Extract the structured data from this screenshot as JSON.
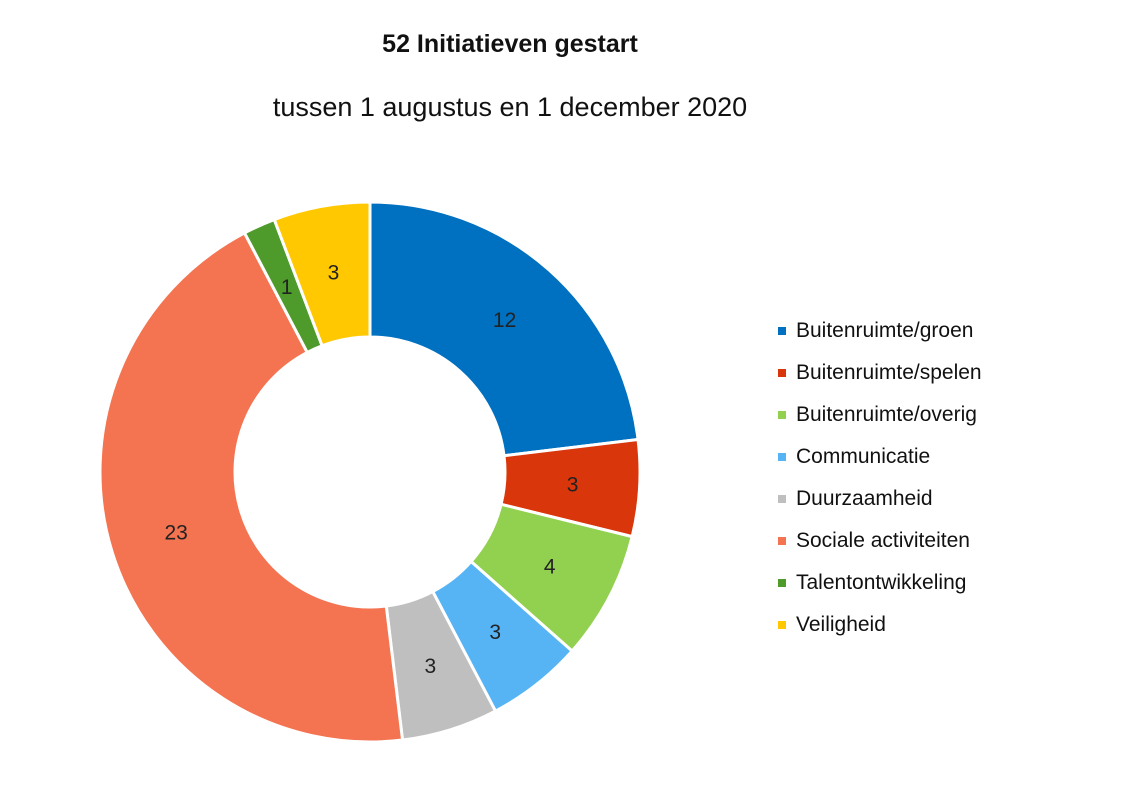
{
  "chart_data": {
    "type": "pie",
    "variant": "donut",
    "title": "52 Initiatieven gestart",
    "subtitle": "tussen 1  augustus en 1 december 2020",
    "categories": [
      "Buitenruimte/groen",
      "Buitenruimte/spelen",
      "Buitenruimte/overig",
      "Communicatie",
      "Duurzaamheid",
      "Sociale activiteiten",
      "Talentontwikkeling",
      "Veiligheid"
    ],
    "values": [
      12,
      3,
      4,
      3,
      3,
      23,
      1,
      3
    ],
    "colors": [
      "#0070C0",
      "#D9360B",
      "#92D050",
      "#56B4F5",
      "#BFBFBF",
      "#F47350",
      "#4E9A2A",
      "#FFC800"
    ],
    "legend_position": "right"
  }
}
